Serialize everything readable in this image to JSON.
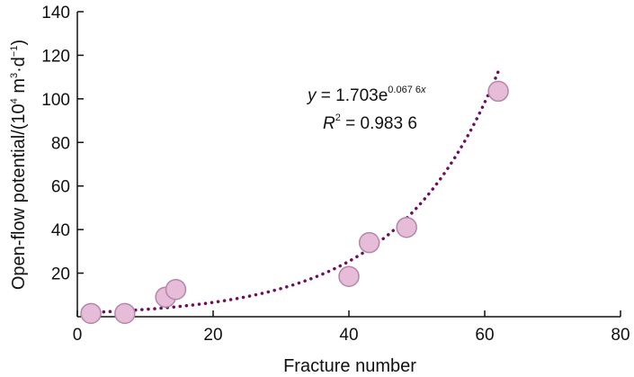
{
  "chart_data": {
    "type": "scatter",
    "xlabel": "Fracture number",
    "ylabel": {
      "main": "Open-flow potential/(10",
      "exp1": "4",
      "mid": " m",
      "exp2": "3",
      "dot": "·d",
      "exp3": "−1",
      "end": ")"
    },
    "xlim": [
      0,
      80
    ],
    "ylim": [
      0,
      140
    ],
    "x_ticks": [
      "0",
      "20",
      "40",
      "60",
      "80"
    ],
    "y_ticks": [
      "20",
      "40",
      "60",
      "80",
      "100",
      "120",
      "140"
    ],
    "points": [
      {
        "x": 2,
        "y": 1.5
      },
      {
        "x": 7,
        "y": 1.5
      },
      {
        "x": 13,
        "y": 9
      },
      {
        "x": 14.5,
        "y": 12.5
      },
      {
        "x": 40,
        "y": 18.5
      },
      {
        "x": 43,
        "y": 34
      },
      {
        "x": 48.5,
        "y": 41
      },
      {
        "x": 62,
        "y": 103.5
      }
    ],
    "trendline": {
      "type": "exponential",
      "a": 1.703,
      "b": 0.0676,
      "x_range": [
        2,
        62
      ],
      "equation": {
        "lhs": "y",
        "mid": " = 1.703e",
        "exp_num": "0.067 6",
        "exp_var": "x"
      },
      "r2": {
        "lhs": "R",
        "sup": "2",
        "rhs": " = 0.983 6"
      }
    },
    "colors": {
      "marker_fill": "#e7bcd8",
      "marker_stroke": "#b487aa",
      "trendline": "#6b0f5e",
      "axis": "#111111"
    }
  }
}
